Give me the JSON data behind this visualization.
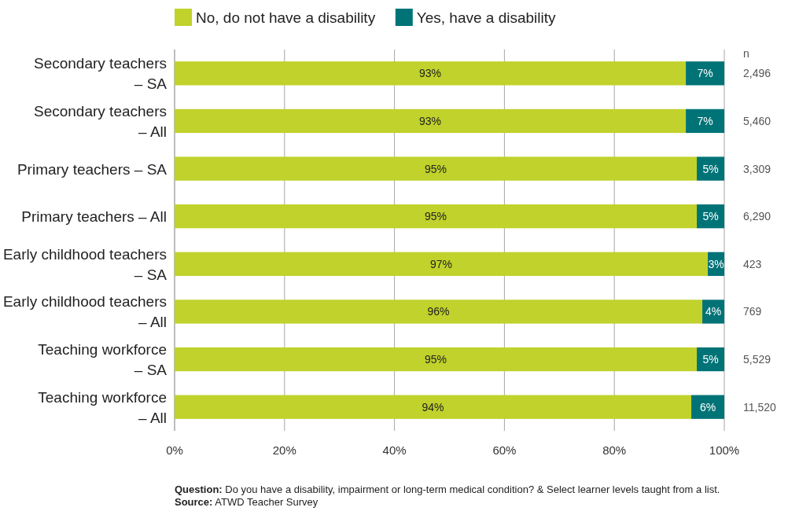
{
  "chart_data": {
    "type": "bar",
    "orientation": "horizontal",
    "stacked": true,
    "categories": [
      "Secondary teachers – SA",
      "Secondary teachers – All",
      "Primary teachers – SA",
      "Primary teachers – All",
      "Early childhood teachers – SA",
      "Early childhood teachers – All",
      "Teaching workforce – SA",
      "Teaching workforce – All"
    ],
    "series": [
      {
        "name": "No, do not have a disability",
        "color": "#c0d22b",
        "values": [
          93,
          93,
          95,
          95,
          97,
          96,
          95,
          94
        ],
        "value_labels": [
          "93%",
          "93%",
          "95%",
          "95%",
          "97%",
          "96%",
          "95%",
          "94%"
        ]
      },
      {
        "name": "Yes, have a disability",
        "color": "#007377",
        "values": [
          7,
          7,
          5,
          5,
          3,
          4,
          5,
          6
        ],
        "value_labels": [
          "7%",
          "7%",
          "5%",
          "5%",
          "3%",
          "4%",
          "5%",
          "6%"
        ]
      }
    ],
    "xlim": [
      0,
      100
    ],
    "xticks": [
      {
        "value": 0,
        "label": "0%"
      },
      {
        "value": 20,
        "label": "20%"
      },
      {
        "value": 40,
        "label": "40%"
      },
      {
        "value": 60,
        "label": "60%"
      },
      {
        "value": 80,
        "label": "80%"
      },
      {
        "value": 100,
        "label": "100%"
      }
    ],
    "grid": "x",
    "legend": "top",
    "annotations": [
      "n",
      "2,496",
      "5,460",
      "3,309",
      "6,290",
      "423",
      "769",
      "5,529",
      "11,520",
      "Question: Do you have a disability, impairment or long-term medical condition? & Select learner levels taught from a list.",
      "Source: ATWD Teacher Survey"
    ]
  }
}
